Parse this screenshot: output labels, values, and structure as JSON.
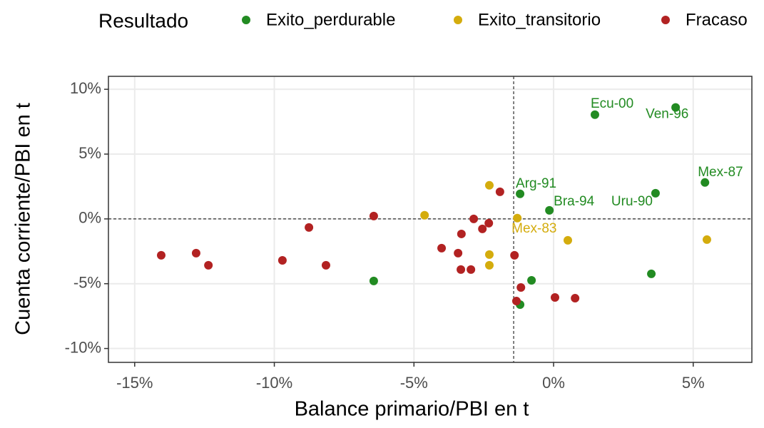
{
  "chart_data": {
    "type": "scatter",
    "xlabel": "Balance primario/PBI en t",
    "ylabel": "Cuenta corriente/PBI en t",
    "legend_title": "Resultado",
    "legend_position": "top",
    "grid": true,
    "xlim": [
      -15.94,
      7.1
    ],
    "ylim": [
      -11.07,
      11.0
    ],
    "xticks": [
      {
        "value": -15,
        "label": "-15%"
      },
      {
        "value": -10,
        "label": "-10%"
      },
      {
        "value": -5,
        "label": "-5%"
      },
      {
        "value": 0,
        "label": "0%"
      },
      {
        "value": 5,
        "label": "5%"
      }
    ],
    "yticks": [
      {
        "value": -10,
        "label": "-10%"
      },
      {
        "value": -5,
        "label": "-5%"
      },
      {
        "value": 0,
        "label": "0%"
      },
      {
        "value": 5,
        "label": "5%"
      },
      {
        "value": 10,
        "label": "10%"
      }
    ],
    "vline": -1.43,
    "hline": 0,
    "series": [
      {
        "name": "Exito_perdurable",
        "color": "#228b22",
        "x": [
          1.48,
          4.37,
          5.42,
          3.65,
          -1.2,
          -0.15,
          -0.79,
          3.5,
          -6.44,
          -1.2
        ],
        "values": [
          8.04,
          8.6,
          2.81,
          1.98,
          1.93,
          0.66,
          -4.74,
          -4.24,
          -4.79,
          -6.61
        ],
        "labels": [
          "Ecu-00",
          "Ven-96",
          "Mex-87",
          "Uru-90",
          "Arg-91",
          "Bra-94",
          null,
          null,
          null,
          null
        ]
      },
      {
        "name": "Exito_transitorio",
        "color": "#d4ac0d",
        "x": [
          -2.3,
          -4.62,
          -1.3,
          0.51,
          5.49,
          -2.3,
          -2.3
        ],
        "values": [
          2.59,
          0.28,
          0.06,
          -1.65,
          -1.6,
          -2.75,
          -3.58
        ],
        "labels": [
          null,
          null,
          "Mex-83",
          null,
          null,
          null,
          null
        ]
      },
      {
        "name": "Fracaso",
        "color": "#b22222",
        "x": [
          -14.05,
          -12.8,
          -12.36,
          -9.71,
          -8.76,
          -8.15,
          -6.44,
          -4.01,
          -3.3,
          -3.42,
          -3.32,
          -2.96,
          -2.86,
          -2.55,
          -2.32,
          -1.92,
          -1.4,
          -1.17,
          -1.33,
          0.05,
          0.77
        ],
        "values": [
          -2.81,
          -2.64,
          -3.58,
          -3.2,
          -0.66,
          -3.58,
          0.22,
          -2.26,
          -1.16,
          -2.64,
          -3.91,
          -3.91,
          0,
          -0.77,
          -0.33,
          2.09,
          -2.81,
          -5.29,
          -6.34,
          -6.06,
          -6.12
        ]
      }
    ]
  }
}
